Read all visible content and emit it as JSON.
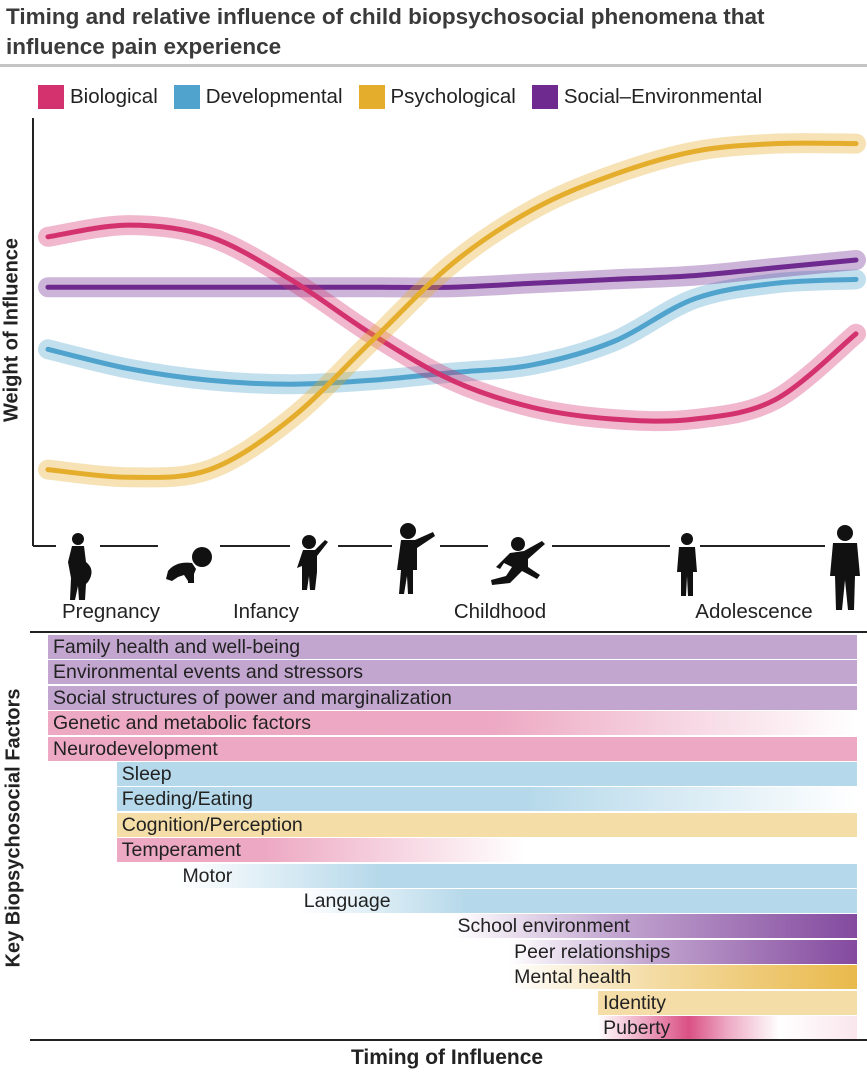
{
  "title": "Timing and relative influence of child biopsychosocial phenomena that influence pain experience",
  "colors": {
    "biological": "#d4326f",
    "developmental": "#4fa3cd",
    "psychological": "#e5ad2c",
    "social": "#6e2a8e"
  },
  "chart_data": {
    "type": "line",
    "title": "Timing and relative influence of child biopsychosocial phenomena that influence pain experience",
    "xlabel": "Timing of Influence",
    "ylabel": "Weight of Influence",
    "xlim": [
      0,
      10
    ],
    "ylim": [
      0,
      10
    ],
    "grid": false,
    "legend_position": "top",
    "stages": [
      {
        "label": "Pregnancy",
        "x": 0.7
      },
      {
        "label": "Infancy",
        "x": 2.7
      },
      {
        "label": "Childhood",
        "x": 5.6
      },
      {
        "label": "Adolescence",
        "x": 9.0
      }
    ],
    "series": [
      {
        "name": "Biological",
        "key": "biological",
        "x": [
          0,
          1,
          2,
          3,
          4,
          5,
          6,
          7,
          8,
          9,
          10
        ],
        "values": [
          7.3,
          7.6,
          7.3,
          6.2,
          4.8,
          3.6,
          2.9,
          2.6,
          2.6,
          3.1,
          4.8
        ]
      },
      {
        "name": "Developmental",
        "key": "developmental",
        "x": [
          0,
          1,
          2,
          3,
          4,
          5,
          6,
          7,
          8,
          9,
          10
        ],
        "values": [
          4.4,
          3.9,
          3.6,
          3.5,
          3.6,
          3.8,
          4.0,
          4.6,
          5.7,
          6.1,
          6.2
        ]
      },
      {
        "name": "Psychological",
        "key": "psychological",
        "x": [
          0,
          1,
          2,
          3,
          4,
          5,
          6,
          7,
          8,
          9,
          10
        ],
        "values": [
          1.3,
          1.1,
          1.3,
          2.6,
          4.6,
          6.6,
          8.0,
          8.9,
          9.5,
          9.7,
          9.7
        ]
      },
      {
        "name": "Social–Environmental",
        "key": "social",
        "x": [
          0,
          1,
          2,
          3,
          4,
          5,
          6,
          7,
          8,
          9,
          10
        ],
        "values": [
          6.0,
          6.0,
          6.0,
          6.0,
          6.0,
          6.0,
          6.1,
          6.2,
          6.3,
          6.5,
          6.7
        ]
      }
    ]
  },
  "factors": {
    "ylabel": "Key Biopsychosocial Factors",
    "xlabel": "Timing of Influence",
    "items": [
      {
        "label": "Family health and well-being",
        "category": "social",
        "start": 0.0,
        "fade": "none"
      },
      {
        "label": "Environmental events and stressors",
        "category": "social",
        "start": 0.0,
        "fade": "none"
      },
      {
        "label": "Social structures of power and marginalization",
        "category": "social",
        "start": 0.0,
        "fade": "none"
      },
      {
        "label": "Genetic and metabolic factors",
        "category": "biological",
        "start": 0.0,
        "fade": "out"
      },
      {
        "label": "Neurodevelopment",
        "category": "biological",
        "start": 0.0,
        "fade": "none"
      },
      {
        "label": "Sleep",
        "category": "developmental",
        "start": 0.85,
        "fade": "none"
      },
      {
        "label": "Feeding/Eating",
        "category": "developmental",
        "start": 0.85,
        "fade": "out"
      },
      {
        "label": "Cognition/Perception",
        "category": "psychological",
        "start": 0.85,
        "fade": "none"
      },
      {
        "label": "Temperament",
        "category": "biological",
        "start": 0.85,
        "fade": "out-short"
      },
      {
        "label": "Motor",
        "category": "developmental",
        "start": 1.6,
        "fade": "in"
      },
      {
        "label": "Language",
        "category": "developmental",
        "start": 3.1,
        "fade": "in"
      },
      {
        "label": "School environment",
        "category": "social",
        "start": 5.0,
        "fade": "grow"
      },
      {
        "label": "Peer relationships",
        "category": "social",
        "start": 5.7,
        "fade": "grow"
      },
      {
        "label": "Mental health",
        "category": "psychological",
        "start": 5.7,
        "fade": "grow"
      },
      {
        "label": "Identity",
        "category": "psychological",
        "start": 6.8,
        "fade": "none"
      },
      {
        "label": "Puberty",
        "category": "biological",
        "start": 6.8,
        "fade": "puberty"
      }
    ]
  }
}
